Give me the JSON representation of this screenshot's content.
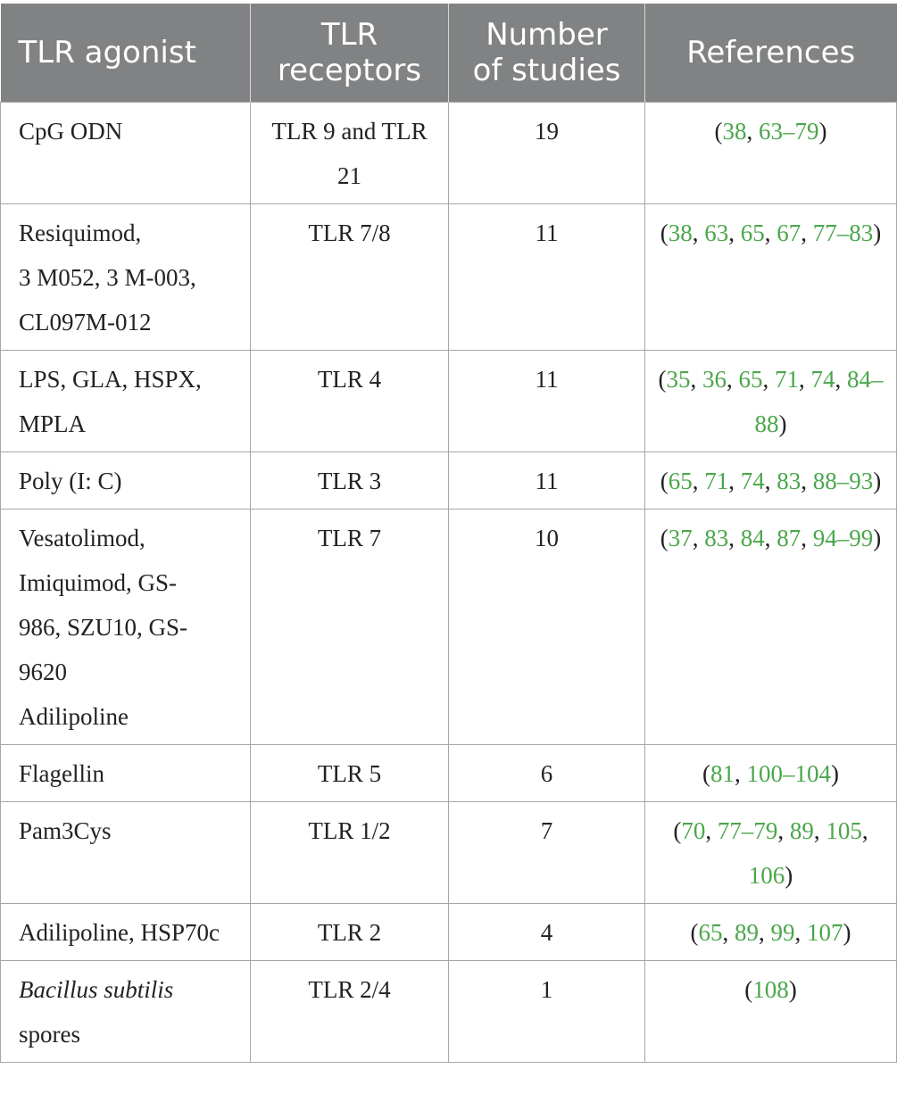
{
  "headers": {
    "agonist": "TLR agonist",
    "receptors_line1": "TLR",
    "receptors_line2": "receptors",
    "studies_line1": "Number",
    "studies_line2": "of studies",
    "references": "References"
  },
  "rows": [
    {
      "agonist_lines": [
        "CpG ODN"
      ],
      "receptors": "TLR 9 and TLR 21",
      "studies": "19",
      "refs": [
        "(",
        "38",
        ", ",
        "63–79",
        ")"
      ]
    },
    {
      "agonist_lines": [
        "Resiquimod,",
        "3 M052, 3 M-003,",
        "CL097M-012"
      ],
      "receptors": "TLR 7/8",
      "studies": "11",
      "refs": [
        "(",
        "38",
        ", ",
        "63",
        ", ",
        "65",
        ", ",
        "67",
        ", ",
        "77–83",
        ")"
      ]
    },
    {
      "agonist_lines": [
        "LPS, GLA, HSPX,",
        "MPLA"
      ],
      "receptors": "TLR 4",
      "studies": "11",
      "refs": [
        "(",
        "35",
        ", ",
        "36",
        ", ",
        "65",
        ", ",
        "71",
        ", ",
        "74",
        ", ",
        "84–88",
        ")"
      ]
    },
    {
      "agonist_lines": [
        "Poly (I: C)"
      ],
      "receptors": "TLR 3",
      "studies": "11",
      "refs": [
        "(",
        "65",
        ", ",
        "71",
        ", ",
        "74",
        ", ",
        "83",
        ", ",
        "88–93",
        ")"
      ]
    },
    {
      "agonist_lines": [
        "Vesatolimod,",
        "Imiquimod, GS-",
        "986, SZU10, GS-",
        "9620",
        "Adilipoline"
      ],
      "receptors": "TLR 7",
      "studies": "10",
      "refs": [
        "(",
        "37",
        ", ",
        "83",
        ", ",
        "84",
        ", ",
        "87",
        ", ",
        "94–99",
        ")"
      ]
    },
    {
      "agonist_lines": [
        "Flagellin"
      ],
      "receptors": "TLR 5",
      "studies": "6",
      "refs": [
        "(",
        "81",
        ", ",
        "100–104",
        ")"
      ]
    },
    {
      "agonist_lines": [
        "Pam3Cys"
      ],
      "receptors": "TLR 1/2",
      "studies": "7",
      "refs": [
        "(",
        "70",
        ", ",
        "77–79",
        ", ",
        "89",
        ", ",
        "105",
        ", ",
        "106",
        ")"
      ]
    },
    {
      "agonist_lines": [
        "Adilipoline, HSP70c"
      ],
      "receptors": "TLR 2",
      "studies": "4",
      "refs": [
        "(",
        "65",
        ", ",
        "89",
        ", ",
        "99",
        ", ",
        "107",
        ")"
      ]
    },
    {
      "agonist_lines": [
        "Bacillus subtilis",
        "spores"
      ],
      "agonist_italic_lines": [
        0
      ],
      "receptors": "TLR 2/4",
      "studies": "1",
      "refs": [
        "(",
        "108",
        ")"
      ]
    }
  ],
  "colors": {
    "header_bg": "#808283",
    "header_text": "#ffffff",
    "reference_link": "#4aa64a",
    "border": "#a6a6a6"
  }
}
